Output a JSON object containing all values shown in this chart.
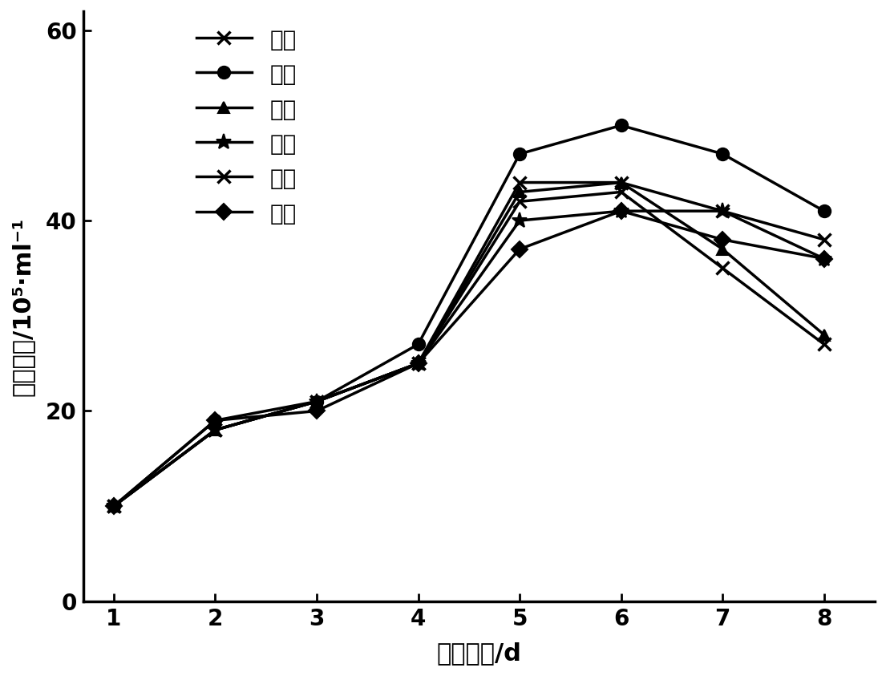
{
  "x": [
    1,
    2,
    3,
    4,
    5,
    6,
    7,
    8
  ],
  "series": {
    "白光": {
      "y": [
        10,
        18,
        21,
        25,
        44,
        44,
        41,
        38
      ],
      "marker": "x",
      "markersize": 11,
      "linewidth": 2.5,
      "label": "白光",
      "markeredgewidth": 2.5,
      "markerfacecolor": "none"
    },
    "红光": {
      "y": [
        10,
        19,
        21,
        27,
        47,
        50,
        47,
        41
      ],
      "marker": "o",
      "markersize": 11,
      "linewidth": 2.5,
      "label": "红光",
      "markeredgewidth": 1.5,
      "markerfacecolor": "black"
    },
    "黄光": {
      "y": [
        10,
        18,
        21,
        25,
        43,
        44,
        37,
        28
      ],
      "marker": "^",
      "markersize": 10,
      "linewidth": 2.5,
      "label": "黄光",
      "markeredgewidth": 1.5,
      "markerfacecolor": "black"
    },
    "蓝光": {
      "y": [
        10,
        18,
        21,
        25,
        40,
        41,
        41,
        36
      ],
      "marker": "*",
      "markersize": 14,
      "linewidth": 2.5,
      "label": "蓝光",
      "markeredgewidth": 1.5,
      "markerfacecolor": "black"
    },
    "紫光": {
      "y": [
        10,
        18,
        21,
        25,
        42,
        43,
        35,
        27
      ],
      "marker": "x",
      "markersize": 11,
      "linewidth": 2.5,
      "label": "紫光",
      "markeredgewidth": 2.5,
      "markerfacecolor": "none"
    },
    "绿光": {
      "y": [
        10,
        19,
        20,
        25,
        37,
        41,
        38,
        36
      ],
      "marker": "D",
      "markersize": 10,
      "linewidth": 2.5,
      "label": "绿光",
      "markeredgewidth": 1.5,
      "markerfacecolor": "black"
    }
  },
  "series_order": [
    "白光",
    "红光",
    "黄光",
    "蓝光",
    "紫光",
    "绿光"
  ],
  "xlabel": "培养时间/d",
  "ylabel_part1": "细胞浓度/10",
  "ylabel_part2": "5",
  "ylabel_part3": "·ml",
  "ylabel_part4": "-1",
  "xlim": [
    0.7,
    8.5
  ],
  "ylim": [
    0,
    62
  ],
  "yticks": [
    0,
    20,
    40,
    60
  ],
  "xticks": [
    1,
    2,
    3,
    4,
    5,
    6,
    7,
    8
  ],
  "color": "#000000",
  "legend_fontsize": 20,
  "axis_label_fontsize": 22,
  "tick_fontsize": 20,
  "figsize": [
    11.05,
    8.43
  ],
  "dpi": 100
}
